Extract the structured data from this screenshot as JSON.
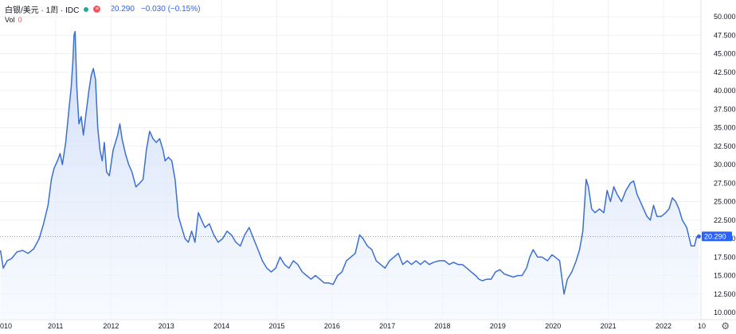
{
  "header": {
    "symbol": "白银/美元 · 1周 · IDC",
    "price": "20.290",
    "change": "−0.030 (−0.15%)"
  },
  "volume": {
    "label": "Vol",
    "value": "0"
  },
  "price_label": "20.290",
  "colors": {
    "line": "#3b6fd4",
    "fill": "#dfe8fa",
    "last": "#2962ff"
  },
  "chart_data": {
    "type": "area",
    "title": "",
    "xlabel": "",
    "ylabel": "",
    "y_ticks": [
      "10.000",
      "12.500",
      "15.000",
      "17.500",
      "20.000",
      "22.500",
      "25.000",
      "27.500",
      "30.000",
      "32.500",
      "35.000",
      "37.500",
      "40.000",
      "42.500",
      "45.000",
      "47.500",
      "50.000"
    ],
    "x_ticks": [
      "010",
      "2011",
      "2012",
      "2013",
      "2014",
      "2015",
      "2016",
      "2017",
      "2018",
      "2019",
      "2020",
      "2021",
      "2022",
      "10"
    ],
    "ylim": [
      10,
      50
    ],
    "xlim": [
      2010.0,
      2022.8
    ],
    "grid": true,
    "series": [
      {
        "points": [
          [
            2010.0,
            18.4
          ],
          [
            2010.05,
            16.0
          ],
          [
            2010.12,
            17.0
          ],
          [
            2010.2,
            17.3
          ],
          [
            2010.3,
            18.2
          ],
          [
            2010.4,
            18.4
          ],
          [
            2010.5,
            18.0
          ],
          [
            2010.6,
            18.6
          ],
          [
            2010.7,
            20.0
          ],
          [
            2010.78,
            22.0
          ],
          [
            2010.86,
            24.5
          ],
          [
            2010.92,
            28.0
          ],
          [
            2010.97,
            29.5
          ],
          [
            2011.03,
            30.5
          ],
          [
            2011.08,
            31.5
          ],
          [
            2011.12,
            30.0
          ],
          [
            2011.18,
            33.0
          ],
          [
            2011.24,
            37.5
          ],
          [
            2011.28,
            40.5
          ],
          [
            2011.31,
            44.0
          ],
          [
            2011.33,
            47.5
          ],
          [
            2011.35,
            48.0
          ],
          [
            2011.38,
            40.5
          ],
          [
            2011.42,
            35.5
          ],
          [
            2011.46,
            36.5
          ],
          [
            2011.5,
            34.0
          ],
          [
            2011.55,
            37.0
          ],
          [
            2011.6,
            40.0
          ],
          [
            2011.64,
            42.0
          ],
          [
            2011.68,
            43.0
          ],
          [
            2011.72,
            41.5
          ],
          [
            2011.76,
            35.0
          ],
          [
            2011.8,
            32.0
          ],
          [
            2011.84,
            30.5
          ],
          [
            2011.88,
            33.0
          ],
          [
            2011.92,
            29.0
          ],
          [
            2011.97,
            28.5
          ],
          [
            2012.04,
            32.0
          ],
          [
            2012.12,
            34.0
          ],
          [
            2012.16,
            35.5
          ],
          [
            2012.2,
            33.5
          ],
          [
            2012.26,
            31.5
          ],
          [
            2012.32,
            30.0
          ],
          [
            2012.38,
            29.0
          ],
          [
            2012.45,
            27.0
          ],
          [
            2012.52,
            27.5
          ],
          [
            2012.58,
            28.0
          ],
          [
            2012.64,
            32.0
          ],
          [
            2012.7,
            34.5
          ],
          [
            2012.76,
            33.5
          ],
          [
            2012.82,
            33.0
          ],
          [
            2012.88,
            33.5
          ],
          [
            2012.94,
            32.0
          ],
          [
            2012.98,
            30.5
          ],
          [
            2013.04,
            31.0
          ],
          [
            2013.1,
            30.5
          ],
          [
            2013.16,
            28.0
          ],
          [
            2013.22,
            23.0
          ],
          [
            2013.28,
            21.5
          ],
          [
            2013.34,
            20.0
          ],
          [
            2013.4,
            19.5
          ],
          [
            2013.46,
            21.0
          ],
          [
            2013.52,
            19.5
          ],
          [
            2013.58,
            23.5
          ],
          [
            2013.64,
            22.5
          ],
          [
            2013.7,
            21.5
          ],
          [
            2013.78,
            22.0
          ],
          [
            2013.86,
            20.5
          ],
          [
            2013.94,
            19.5
          ],
          [
            2014.02,
            20.0
          ],
          [
            2014.1,
            21.0
          ],
          [
            2014.18,
            20.5
          ],
          [
            2014.26,
            19.5
          ],
          [
            2014.34,
            19.0
          ],
          [
            2014.42,
            20.5
          ],
          [
            2014.5,
            21.5
          ],
          [
            2014.58,
            20.0
          ],
          [
            2014.66,
            18.5
          ],
          [
            2014.74,
            17.0
          ],
          [
            2014.82,
            16.0
          ],
          [
            2014.9,
            15.5
          ],
          [
            2014.98,
            16.0
          ],
          [
            2015.06,
            17.5
          ],
          [
            2015.14,
            16.5
          ],
          [
            2015.22,
            16.0
          ],
          [
            2015.3,
            17.0
          ],
          [
            2015.38,
            16.5
          ],
          [
            2015.46,
            15.5
          ],
          [
            2015.54,
            15.0
          ],
          [
            2015.62,
            14.5
          ],
          [
            2015.7,
            15.0
          ],
          [
            2015.78,
            14.5
          ],
          [
            2015.86,
            14.0
          ],
          [
            2015.94,
            14.0
          ],
          [
            2016.02,
            13.8
          ],
          [
            2016.1,
            15.0
          ],
          [
            2016.18,
            15.5
          ],
          [
            2016.26,
            17.0
          ],
          [
            2016.34,
            17.5
          ],
          [
            2016.42,
            18.0
          ],
          [
            2016.5,
            20.5
          ],
          [
            2016.56,
            20.0
          ],
          [
            2016.64,
            19.0
          ],
          [
            2016.72,
            18.5
          ],
          [
            2016.8,
            17.0
          ],
          [
            2016.88,
            16.5
          ],
          [
            2016.96,
            16.0
          ],
          [
            2017.04,
            17.0
          ],
          [
            2017.12,
            17.5
          ],
          [
            2017.2,
            18.0
          ],
          [
            2017.28,
            16.5
          ],
          [
            2017.36,
            17.0
          ],
          [
            2017.44,
            16.5
          ],
          [
            2017.52,
            17.0
          ],
          [
            2017.6,
            16.5
          ],
          [
            2017.68,
            17.0
          ],
          [
            2017.76,
            16.5
          ],
          [
            2017.84,
            16.8
          ],
          [
            2017.94,
            17.0
          ],
          [
            2018.04,
            17.0
          ],
          [
            2018.12,
            16.5
          ],
          [
            2018.2,
            16.8
          ],
          [
            2018.28,
            16.5
          ],
          [
            2018.36,
            16.5
          ],
          [
            2018.44,
            16.0
          ],
          [
            2018.52,
            15.5
          ],
          [
            2018.6,
            15.0
          ],
          [
            2018.66,
            14.5
          ],
          [
            2018.72,
            14.3
          ],
          [
            2018.8,
            14.5
          ],
          [
            2018.88,
            14.5
          ],
          [
            2018.96,
            15.5
          ],
          [
            2019.04,
            15.8
          ],
          [
            2019.12,
            15.2
          ],
          [
            2019.2,
            15.0
          ],
          [
            2019.28,
            14.8
          ],
          [
            2019.36,
            15.0
          ],
          [
            2019.44,
            15.0
          ],
          [
            2019.52,
            16.0
          ],
          [
            2019.58,
            17.5
          ],
          [
            2019.64,
            18.5
          ],
          [
            2019.72,
            17.5
          ],
          [
            2019.8,
            17.5
          ],
          [
            2019.9,
            17.0
          ],
          [
            2019.98,
            17.8
          ],
          [
            2020.04,
            17.5
          ],
          [
            2020.12,
            17.0
          ],
          [
            2020.2,
            12.5
          ],
          [
            2020.26,
            14.5
          ],
          [
            2020.34,
            15.5
          ],
          [
            2020.42,
            17.0
          ],
          [
            2020.48,
            18.5
          ],
          [
            2020.54,
            21.0
          ],
          [
            2020.6,
            28.0
          ],
          [
            2020.64,
            27.0
          ],
          [
            2020.7,
            24.0
          ],
          [
            2020.76,
            23.5
          ],
          [
            2020.84,
            24.0
          ],
          [
            2020.92,
            23.5
          ],
          [
            2020.98,
            26.5
          ],
          [
            2021.04,
            25.0
          ],
          [
            2021.1,
            27.0
          ],
          [
            2021.16,
            26.0
          ],
          [
            2021.24,
            25.0
          ],
          [
            2021.32,
            26.5
          ],
          [
            2021.4,
            27.5
          ],
          [
            2021.46,
            27.8
          ],
          [
            2021.52,
            26.0
          ],
          [
            2021.58,
            25.0
          ],
          [
            2021.64,
            24.0
          ],
          [
            2021.7,
            23.0
          ],
          [
            2021.76,
            22.5
          ],
          [
            2021.82,
            24.5
          ],
          [
            2021.88,
            23.0
          ],
          [
            2021.96,
            23.0
          ],
          [
            2022.04,
            23.5
          ],
          [
            2022.1,
            24.0
          ],
          [
            2022.16,
            25.5
          ],
          [
            2022.22,
            25.0
          ],
          [
            2022.28,
            24.0
          ],
          [
            2022.34,
            22.5
          ],
          [
            2022.42,
            21.5
          ],
          [
            2022.5,
            19.0
          ],
          [
            2022.56,
            19.0
          ],
          [
            2022.6,
            20.2
          ],
          [
            2022.64,
            20.29
          ]
        ]
      }
    ]
  }
}
